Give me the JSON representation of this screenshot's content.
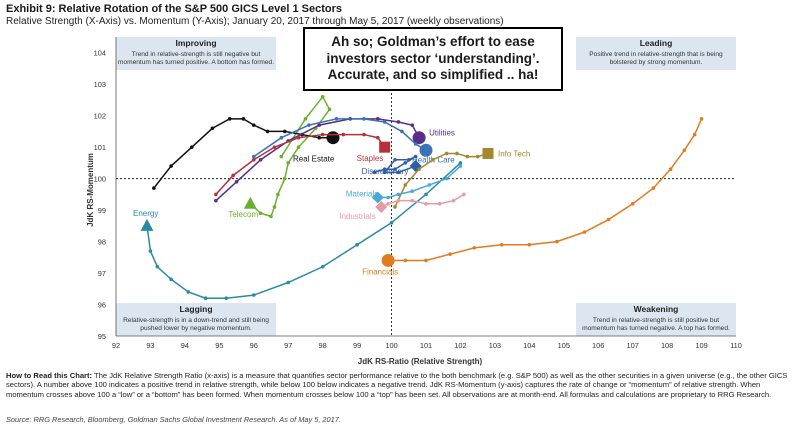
{
  "header": {
    "title": "Exhibit 9: Relative Rotation of the S&P 500 GICS Level 1 Sectors",
    "subtitle": "Relative Strength (X-Axis) vs. Momentum (Y-Axis); January 20, 2017 through May 5, 2017 (weekly observations)"
  },
  "callout": {
    "text": "Ah so; Goldman’s effort to ease investors sector ‘understanding’. Accurate, and so simplified .. ha!"
  },
  "quadrants": {
    "improving": {
      "title": "Improving",
      "desc1": "Trend in relative-strength is still negative but",
      "desc2": "momentum has turned positive. A bottom has formed."
    },
    "leading": {
      "title": "Leading",
      "desc1": "Positive trend in relative-strength that is being",
      "desc2": "bolstered by strong momentum."
    },
    "lagging": {
      "title": "Lagging",
      "desc1": "Relative-strength is in a down-trend and still being",
      "desc2": "pushed lower by negative momentum."
    },
    "weakening": {
      "title": "Weakening",
      "desc1": "Trend in relative-strength is still positive but",
      "desc2": "momentum has turned negative. A top has formed."
    }
  },
  "footer": {
    "howto_label": "How to Read this Chart:",
    "howto_text": " The JdK Relative Strength Ratio (x-axis) is a measure that quantifies sector performance relative to the both benchmark (e.g. S&P 500) as well as the other securities in a given universe (e.g., the other GICS sectors). A number above 100 indicates a positive trend in relative strength, while below 100 below indicates a negative trend. JdK RS-Momentum (y-axis) captures the rate of change or “momentum” of relative strength. When momentum crosses above 100 a “low” or a “bottom” has been formed. When momentum crosses below 100 a “top” has been set. All observations are at month-end. All formulas and calculations are proprietary to RRG Research.",
    "source": "Source: RRG Research, Bloomberg, Goldman Sachs Global Investment Research. As of May 5, 2017."
  },
  "chart_data": {
    "type": "scatter",
    "xlabel": "JdK RS-Ratio (Relative Strength)",
    "ylabel": "JdK RS-Momentum",
    "xlim": [
      92,
      110
    ],
    "ylim": [
      95,
      104.5
    ],
    "xticks": [
      92,
      93,
      94,
      95,
      96,
      97,
      98,
      99,
      100,
      101,
      102,
      103,
      104,
      105,
      106,
      107,
      108,
      109,
      110
    ],
    "yticks": [
      95,
      96,
      97,
      98,
      99,
      100,
      101,
      102,
      103,
      104
    ],
    "reference_lines": {
      "x": 100,
      "y": 100
    },
    "series": [
      {
        "name": "Energy",
        "color": "#2a8aa6",
        "marker": "triangle",
        "x": [
          102.0,
          101.0,
          100.0,
          99.0,
          98.0,
          97.0,
          96.0,
          95.2,
          94.6,
          94.1,
          93.6,
          93.2,
          93.0,
          92.9
        ],
        "y": [
          100.5,
          99.5,
          98.6,
          97.9,
          97.2,
          96.7,
          96.3,
          96.2,
          96.2,
          96.4,
          96.8,
          97.2,
          97.7,
          98.5
        ]
      },
      {
        "name": "Financials",
        "color": "#e07b20",
        "marker": "circle",
        "x": [
          109.0,
          108.8,
          108.5,
          108.1,
          107.6,
          107.0,
          106.3,
          105.6,
          104.8,
          104.0,
          103.2,
          102.4,
          101.7,
          101.0,
          100.4,
          99.9
        ],
        "y": [
          101.9,
          101.4,
          100.9,
          100.3,
          99.7,
          99.2,
          98.7,
          98.3,
          98.0,
          97.9,
          97.9,
          97.8,
          97.6,
          97.4,
          97.4,
          97.4
        ]
      },
      {
        "name": "Telecom",
        "color": "#6ab02e",
        "marker": "triangle",
        "x": [
          96.8,
          97.5,
          98.0,
          98.2,
          97.8,
          97.3,
          97.0,
          96.9,
          96.7,
          96.6,
          96.5,
          96.2,
          95.9
        ],
        "y": [
          100.7,
          101.9,
          102.6,
          102.2,
          101.6,
          101.0,
          100.5,
          100.0,
          99.5,
          99.1,
          98.8,
          98.9,
          99.2
        ]
      },
      {
        "name": "Real Estate",
        "color": "#111111",
        "marker": "circle",
        "x": [
          93.1,
          93.6,
          94.2,
          94.8,
          95.3,
          95.7,
          96.0,
          96.4,
          96.9,
          97.4,
          97.9,
          98.3
        ],
        "y": [
          99.7,
          100.4,
          101.0,
          101.6,
          101.9,
          101.9,
          101.7,
          101.5,
          101.5,
          101.4,
          101.3,
          101.3
        ]
      },
      {
        "name": "Utilities",
        "color": "#5a2d86",
        "marker": "circle",
        "x": [
          94.9,
          95.5,
          96.2,
          97.0,
          97.9,
          98.8,
          99.6,
          100.2,
          100.6,
          100.8
        ],
        "y": [
          99.3,
          99.9,
          100.6,
          101.2,
          101.7,
          101.9,
          101.9,
          101.8,
          101.7,
          101.3
        ]
      },
      {
        "name": "Health Care",
        "color": "#3b73b8",
        "marker": "circle",
        "x": [
          96.0,
          96.8,
          97.6,
          98.4,
          99.2,
          99.8,
          100.3,
          100.7,
          101.0
        ],
        "y": [
          100.7,
          101.3,
          101.7,
          101.9,
          101.9,
          101.8,
          101.5,
          101.1,
          100.9
        ]
      },
      {
        "name": "Staples",
        "color": "#b5313a",
        "marker": "square",
        "x": [
          94.9,
          95.4,
          96.0,
          96.6,
          97.3,
          98.0,
          98.6,
          99.2,
          99.6,
          99.8
        ],
        "y": [
          99.5,
          100.1,
          100.6,
          101.0,
          101.3,
          101.4,
          101.4,
          101.4,
          101.3,
          101.0
        ]
      },
      {
        "name": "Discretionary",
        "color": "#2f5ea8",
        "marker": "diamond",
        "x": [
          99.5,
          99.8,
          100.1,
          100.4,
          100.7,
          100.5,
          100.1,
          99.8,
          100.2,
          100.7
        ],
        "y": [
          100.2,
          100.3,
          100.3,
          100.5,
          100.7,
          100.6,
          100.6,
          100.2,
          100.2,
          100.4
        ]
      },
      {
        "name": "Info Tech",
        "color": "#a2882e",
        "marker": "square",
        "x": [
          100.1,
          100.4,
          100.8,
          101.2,
          101.6,
          101.9,
          102.2,
          102.5,
          102.8
        ],
        "y": [
          99.1,
          99.8,
          100.3,
          100.6,
          100.8,
          100.8,
          100.7,
          100.7,
          100.8
        ]
      },
      {
        "name": "Materials",
        "color": "#4aa9d8",
        "marker": "diamond",
        "x": [
          102.0,
          101.6,
          101.1,
          100.6,
          100.2,
          99.9,
          99.7,
          99.6
        ],
        "y": [
          100.4,
          100.0,
          99.8,
          99.6,
          99.5,
          99.4,
          99.4,
          99.4
        ]
      },
      {
        "name": "Industrials",
        "color": "#e79aa6",
        "marker": "diamond",
        "x": [
          102.1,
          101.8,
          101.4,
          101.0,
          100.6,
          100.2,
          99.9,
          99.7
        ],
        "y": [
          99.5,
          99.3,
          99.2,
          99.2,
          99.3,
          99.3,
          99.2,
          99.1
        ]
      }
    ]
  }
}
